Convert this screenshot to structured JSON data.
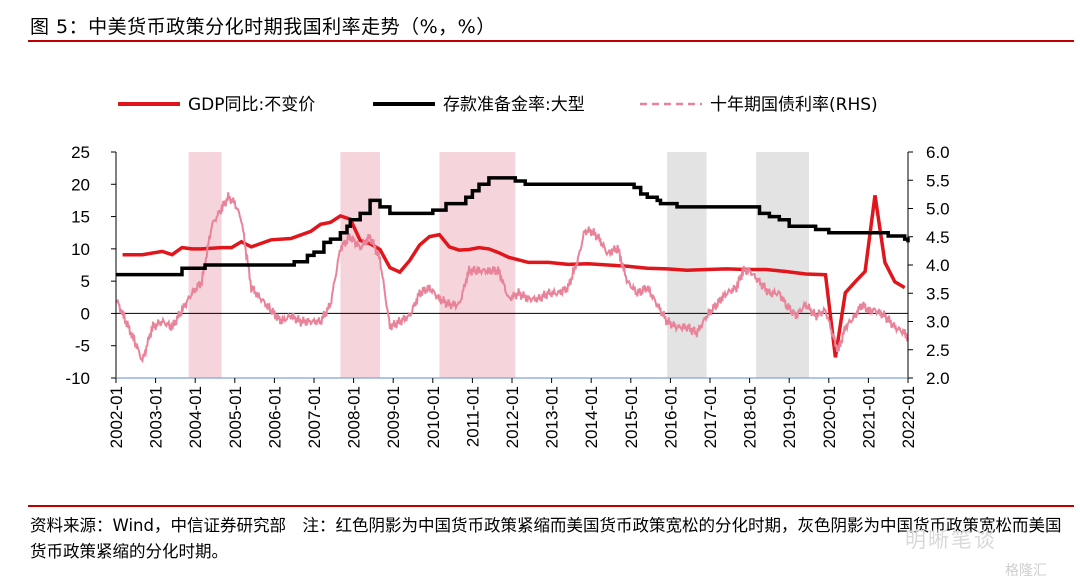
{
  "figure": {
    "title": "图 5：中美货币政策分化时期我国利率走势（%，%）",
    "source_note": "资料来源：Wind，中信证券研究部　注：红色阴影为中国货币政策紧缩而美国货币政策宽松的分化时期，灰色阴影为中国货币政策宽松而美国货币政策紧缩的分化时期。",
    "watermark": "明晰笔谈",
    "watermark2": "格隆汇"
  },
  "colors": {
    "gdp": "#e0161c",
    "rrr": "#000000",
    "bond": "#e8839a",
    "red_shade": "#f5d5db",
    "gray_shade": "#e3e3e3",
    "rule": "#c00000"
  },
  "chart_data": {
    "type": "line",
    "xlabel": "",
    "ylabel": "",
    "x_ticks": [
      "2002-01",
      "2003-01",
      "2004-01",
      "2005-01",
      "2006-01",
      "2007-01",
      "2008-01",
      "2009-01",
      "2010-01",
      "2011-01",
      "2012-01",
      "2013-01",
      "2014-01",
      "2015-01",
      "2016-01",
      "2017-01",
      "2018-01",
      "2019-01",
      "2020-01",
      "2021-01",
      "2022-01"
    ],
    "x_range": [
      "2002-01",
      "2022-01"
    ],
    "y_left": {
      "range": [
        -10,
        25
      ],
      "ticks": [
        "-10",
        "-5",
        "0",
        "5",
        "10",
        "15",
        "20",
        "25"
      ]
    },
    "y_right": {
      "range": [
        2.0,
        6.0
      ],
      "ticks": [
        "2.0",
        "2.5",
        "3.0",
        "3.5",
        "4.0",
        "4.5",
        "5.0",
        "5.5",
        "6.0"
      ]
    },
    "legend_position": "top",
    "shaded_periods": [
      {
        "color": "red",
        "start": "2003-11",
        "end": "2004-09"
      },
      {
        "color": "red",
        "start": "2007-09",
        "end": "2008-09"
      },
      {
        "color": "red",
        "start": "2010-03",
        "end": "2012-02"
      },
      {
        "color": "gray",
        "start": "2015-12",
        "end": "2016-12"
      },
      {
        "color": "gray",
        "start": "2018-03",
        "end": "2019-07"
      }
    ],
    "series": [
      {
        "name": "GDP同比:不变价",
        "axis": "left",
        "x": [
          "2002-03",
          "2002-09",
          "2003-03",
          "2003-06",
          "2003-09",
          "2003-12",
          "2004-03",
          "2004-06",
          "2004-09",
          "2004-12",
          "2005-03",
          "2005-06",
          "2005-12",
          "2006-06",
          "2006-12",
          "2007-03",
          "2007-06",
          "2007-09",
          "2007-12",
          "2008-03",
          "2008-06",
          "2008-09",
          "2008-12",
          "2009-03",
          "2009-06",
          "2009-09",
          "2009-12",
          "2010-03",
          "2010-06",
          "2010-09",
          "2010-12",
          "2011-03",
          "2011-06",
          "2011-09",
          "2011-12",
          "2012-06",
          "2012-12",
          "2013-06",
          "2013-12",
          "2014-06",
          "2014-12",
          "2015-06",
          "2015-12",
          "2016-06",
          "2016-12",
          "2017-06",
          "2017-12",
          "2018-06",
          "2018-12",
          "2019-06",
          "2019-12",
          "2020-03",
          "2020-06",
          "2020-09",
          "2020-12",
          "2021-03",
          "2021-06",
          "2021-09",
          "2021-12"
        ],
        "values": [
          9.1,
          9.1,
          9.6,
          9.1,
          10.2,
          10.0,
          10.0,
          10.1,
          10.2,
          10.2,
          11.1,
          10.3,
          11.4,
          11.6,
          12.7,
          13.8,
          14.1,
          15.1,
          14.6,
          11.3,
          10.8,
          9.9,
          7.1,
          6.4,
          8.2,
          10.6,
          11.9,
          12.2,
          10.3,
          9.8,
          9.9,
          10.2,
          10.0,
          9.4,
          8.7,
          7.9,
          7.9,
          7.6,
          7.7,
          7.5,
          7.3,
          7.0,
          6.9,
          6.7,
          6.8,
          6.9,
          6.8,
          6.8,
          6.5,
          6.1,
          6.0,
          -6.8,
          3.2,
          4.9,
          6.5,
          18.3,
          7.9,
          4.9,
          4.0
        ]
      },
      {
        "name": "存款准备金率:大型",
        "axis": "left",
        "x": [
          "2002-01",
          "2003-09",
          "2004-04",
          "2004-05",
          "2005-01",
          "2006-01",
          "2006-07",
          "2006-11",
          "2007-01",
          "2007-04",
          "2007-06",
          "2007-09",
          "2007-11",
          "2007-12",
          "2008-03",
          "2008-06",
          "2008-09",
          "2008-12",
          "2010-01",
          "2010-05",
          "2010-11",
          "2011-01",
          "2011-03",
          "2011-06",
          "2011-12",
          "2012-02",
          "2012-05",
          "2015-02",
          "2015-04",
          "2015-06",
          "2015-09",
          "2015-10",
          "2016-03",
          "2018-04",
          "2018-07",
          "2018-10",
          "2019-01",
          "2019-09",
          "2020-01",
          "2020-12",
          "2021-07",
          "2021-12",
          "2022-01"
        ],
        "values": [
          6.0,
          7.0,
          7.5,
          7.5,
          7.5,
          7.5,
          8.0,
          9.0,
          9.5,
          11.0,
          11.5,
          12.5,
          13.5,
          14.5,
          15.5,
          17.5,
          16.5,
          15.5,
          16.0,
          17.0,
          18.0,
          19.0,
          20.0,
          21.0,
          21.0,
          20.5,
          20.0,
          19.5,
          18.5,
          18.0,
          17.5,
          17.0,
          16.5,
          15.5,
          15.0,
          14.5,
          13.5,
          13.0,
          12.5,
          12.5,
          12.0,
          11.5,
          11.0
        ]
      },
      {
        "name": "十年期国债利率(RHS)",
        "axis": "right",
        "x": [
          "2002-01",
          "2002-04",
          "2002-07",
          "2002-09",
          "2002-12",
          "2003-03",
          "2003-06",
          "2003-09",
          "2003-12",
          "2004-03",
          "2004-06",
          "2004-09",
          "2004-11",
          "2005-01",
          "2005-03",
          "2005-06",
          "2005-09",
          "2005-12",
          "2006-03",
          "2006-06",
          "2006-09",
          "2006-12",
          "2007-03",
          "2007-06",
          "2007-09",
          "2007-12",
          "2008-03",
          "2008-06",
          "2008-09",
          "2008-11",
          "2008-12",
          "2009-03",
          "2009-06",
          "2009-09",
          "2009-12",
          "2010-03",
          "2010-06",
          "2010-09",
          "2010-12",
          "2011-03",
          "2011-06",
          "2011-09",
          "2011-12",
          "2012-03",
          "2012-06",
          "2012-09",
          "2012-12",
          "2013-03",
          "2013-06",
          "2013-09",
          "2013-11",
          "2014-01",
          "2014-03",
          "2014-06",
          "2014-09",
          "2014-12",
          "2015-03",
          "2015-06",
          "2015-09",
          "2015-12",
          "2016-03",
          "2016-06",
          "2016-09",
          "2016-12",
          "2017-03",
          "2017-06",
          "2017-09",
          "2017-11",
          "2018-01",
          "2018-04",
          "2018-07",
          "2018-10",
          "2018-12",
          "2019-03",
          "2019-06",
          "2019-09",
          "2019-12",
          "2020-03",
          "2020-04",
          "2020-06",
          "2020-09",
          "2020-11",
          "2021-01",
          "2021-03",
          "2021-06",
          "2021-09",
          "2021-12",
          "2022-01"
        ],
        "values": [
          3.4,
          3.0,
          2.6,
          2.3,
          2.9,
          3.0,
          2.9,
          3.2,
          3.5,
          3.7,
          4.7,
          5.0,
          5.2,
          5.1,
          4.8,
          3.6,
          3.4,
          3.2,
          3.0,
          3.1,
          3.0,
          3.0,
          3.0,
          3.3,
          4.3,
          4.5,
          4.3,
          4.5,
          4.1,
          3.3,
          2.9,
          3.0,
          3.1,
          3.5,
          3.6,
          3.4,
          3.3,
          3.3,
          3.9,
          3.9,
          3.9,
          3.9,
          3.4,
          3.5,
          3.4,
          3.4,
          3.5,
          3.5,
          3.6,
          4.1,
          4.6,
          4.6,
          4.5,
          4.2,
          4.3,
          3.7,
          3.5,
          3.6,
          3.3,
          3.0,
          2.9,
          2.9,
          2.8,
          3.1,
          3.3,
          3.5,
          3.6,
          3.9,
          3.9,
          3.7,
          3.5,
          3.5,
          3.3,
          3.1,
          3.3,
          3.1,
          3.2,
          2.6,
          2.5,
          2.9,
          3.1,
          3.3,
          3.2,
          3.2,
          3.1,
          2.9,
          2.8,
          2.7
        ]
      }
    ]
  }
}
